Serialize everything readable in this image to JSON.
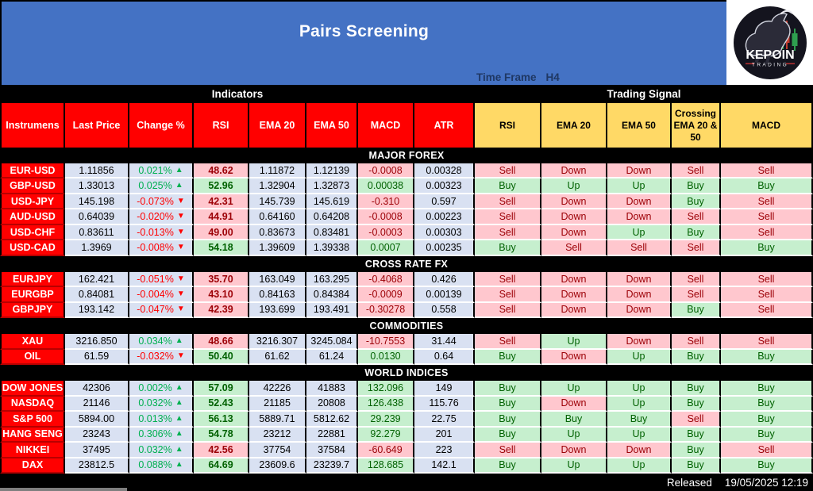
{
  "header": {
    "title": "Pairs Screening",
    "timeframe_label": "Time Frame",
    "timeframe_value": "H4",
    "logo_brand": "KEPOIN",
    "logo_sub": "TRADING"
  },
  "groups": {
    "indicators": "Indicators",
    "trading_signal": "Trading Signal"
  },
  "columns": {
    "indicators": [
      "Instrumens",
      "Last Price",
      "Change %",
      "RSI",
      "EMA 20",
      "EMA 50",
      "MACD",
      "ATR"
    ],
    "signals": [
      "RSI",
      "EMA 20",
      "EMA 50",
      "Crossing EMA  20 & 50",
      "MACD"
    ]
  },
  "icons": {
    "arrow_up": "▲",
    "arrow_down": "▼"
  },
  "sections": [
    {
      "title": "MAJOR FOREX",
      "rows": [
        {
          "instrument": "EUR-USD",
          "last_price": "1.11856",
          "change": "0.021%",
          "change_dir": "up",
          "rsi": "48.62",
          "rsi_state": "bad",
          "ema20": "1.11872",
          "ema50": "1.12139",
          "macd": "-0.0008",
          "macd_state": "bad",
          "atr": "0.00328",
          "signals": [
            {
              "label": "Sell",
              "state": "bad"
            },
            {
              "label": "Down",
              "state": "bad"
            },
            {
              "label": "Down",
              "state": "bad"
            },
            {
              "label": "Sell",
              "state": "bad"
            },
            {
              "label": "Sell",
              "state": "bad"
            }
          ]
        },
        {
          "instrument": "GBP-USD",
          "last_price": "1.33013",
          "change": "0.025%",
          "change_dir": "up",
          "rsi": "52.96",
          "rsi_state": "good",
          "ema20": "1.32904",
          "ema50": "1.32873",
          "macd": "0.00038",
          "macd_state": "good",
          "atr": "0.00323",
          "signals": [
            {
              "label": "Buy",
              "state": "good"
            },
            {
              "label": "Up",
              "state": "good"
            },
            {
              "label": "Up",
              "state": "good"
            },
            {
              "label": "Buy",
              "state": "good"
            },
            {
              "label": "Buy",
              "state": "good"
            }
          ]
        },
        {
          "instrument": "USD-JPY",
          "last_price": "145.198",
          "change": "-0.073%",
          "change_dir": "down",
          "rsi": "42.31",
          "rsi_state": "bad",
          "ema20": "145.739",
          "ema50": "145.619",
          "macd": "-0.310",
          "macd_state": "bad",
          "atr": "0.597",
          "signals": [
            {
              "label": "Sell",
              "state": "bad"
            },
            {
              "label": "Down",
              "state": "bad"
            },
            {
              "label": "Down",
              "state": "bad"
            },
            {
              "label": "Buy",
              "state": "good"
            },
            {
              "label": "Sell",
              "state": "bad"
            }
          ]
        },
        {
          "instrument": "AUD-USD",
          "last_price": "0.64039",
          "change": "-0.020%",
          "change_dir": "down",
          "rsi": "44.91",
          "rsi_state": "bad",
          "ema20": "0.64160",
          "ema50": "0.64208",
          "macd": "-0.0008",
          "macd_state": "bad",
          "atr": "0.00223",
          "signals": [
            {
              "label": "Sell",
              "state": "bad"
            },
            {
              "label": "Down",
              "state": "bad"
            },
            {
              "label": "Down",
              "state": "bad"
            },
            {
              "label": "Sell",
              "state": "bad"
            },
            {
              "label": "Sell",
              "state": "bad"
            }
          ]
        },
        {
          "instrument": "USD-CHF",
          "last_price": "0.83611",
          "change": "-0.013%",
          "change_dir": "down",
          "rsi": "49.00",
          "rsi_state": "bad",
          "ema20": "0.83673",
          "ema50": "0.83481",
          "macd": "-0.0003",
          "macd_state": "bad",
          "atr": "0.00303",
          "signals": [
            {
              "label": "Sell",
              "state": "bad"
            },
            {
              "label": "Down",
              "state": "bad"
            },
            {
              "label": "Up",
              "state": "good"
            },
            {
              "label": "Buy",
              "state": "good"
            },
            {
              "label": "Sell",
              "state": "bad"
            }
          ]
        },
        {
          "instrument": "USD-CAD",
          "last_price": "1.3969",
          "change": "-0.008%",
          "change_dir": "down",
          "rsi": "54.18",
          "rsi_state": "good",
          "ema20": "1.39609",
          "ema50": "1.39338",
          "macd": "0.0007",
          "macd_state": "good",
          "atr": "0.00235",
          "signals": [
            {
              "label": "Buy",
              "state": "good"
            },
            {
              "label": "Sell",
              "state": "bad"
            },
            {
              "label": "Sell",
              "state": "bad"
            },
            {
              "label": "Sell",
              "state": "bad"
            },
            {
              "label": "Buy",
              "state": "good"
            }
          ]
        }
      ]
    },
    {
      "title": "CROSS RATE FX",
      "rows": [
        {
          "instrument": "EURJPY",
          "last_price": "162.421",
          "change": "-0.051%",
          "change_dir": "down",
          "rsi": "35.70",
          "rsi_state": "bad",
          "ema20": "163.049",
          "ema50": "163.295",
          "macd": "-0.4068",
          "macd_state": "bad",
          "atr": "0.426",
          "signals": [
            {
              "label": "Sell",
              "state": "bad"
            },
            {
              "label": "Down",
              "state": "bad"
            },
            {
              "label": "Down",
              "state": "bad"
            },
            {
              "label": "Sell",
              "state": "bad"
            },
            {
              "label": "Sell",
              "state": "bad"
            }
          ]
        },
        {
          "instrument": "EURGBP",
          "last_price": "0.84081",
          "change": "-0.004%",
          "change_dir": "down",
          "rsi": "43.10",
          "rsi_state": "bad",
          "ema20": "0.84163",
          "ema50": "0.84384",
          "macd": "-0.0009",
          "macd_state": "bad",
          "atr": "0.00139",
          "signals": [
            {
              "label": "Sell",
              "state": "bad"
            },
            {
              "label": "Down",
              "state": "bad"
            },
            {
              "label": "Down",
              "state": "bad"
            },
            {
              "label": "Sell",
              "state": "bad"
            },
            {
              "label": "Sell",
              "state": "bad"
            }
          ]
        },
        {
          "instrument": "GBPJPY",
          "last_price": "193.142",
          "change": "-0.047%",
          "change_dir": "down",
          "rsi": "42.39",
          "rsi_state": "bad",
          "ema20": "193.699",
          "ema50": "193.491",
          "macd": "-0.30278",
          "macd_state": "bad",
          "atr": "0.558",
          "signals": [
            {
              "label": "Sell",
              "state": "bad"
            },
            {
              "label": "Down",
              "state": "bad"
            },
            {
              "label": "Down",
              "state": "bad"
            },
            {
              "label": "Buy",
              "state": "good"
            },
            {
              "label": "Sell",
              "state": "bad"
            }
          ]
        }
      ]
    },
    {
      "title": "COMMODITIES",
      "rows": [
        {
          "instrument": "XAU",
          "last_price": "3216.850",
          "change": "0.034%",
          "change_dir": "up",
          "rsi": "48.66",
          "rsi_state": "bad",
          "ema20": "3216.307",
          "ema50": "3245.084",
          "macd": "-10.7553",
          "macd_state": "bad",
          "atr": "31.44",
          "signals": [
            {
              "label": "Sell",
              "state": "bad"
            },
            {
              "label": "Up",
              "state": "good"
            },
            {
              "label": "Down",
              "state": "bad"
            },
            {
              "label": "Sell",
              "state": "bad"
            },
            {
              "label": "Sell",
              "state": "bad"
            }
          ]
        },
        {
          "instrument": "OIL",
          "last_price": "61.59",
          "change": "-0.032%",
          "change_dir": "down",
          "rsi": "50.40",
          "rsi_state": "good",
          "ema20": "61.62",
          "ema50": "61.24",
          "macd": "0.0130",
          "macd_state": "good",
          "atr": "0.64",
          "signals": [
            {
              "label": "Buy",
              "state": "good"
            },
            {
              "label": "Down",
              "state": "bad"
            },
            {
              "label": "Up",
              "state": "good"
            },
            {
              "label": "Buy",
              "state": "good"
            },
            {
              "label": "Buy",
              "state": "good"
            }
          ]
        }
      ]
    },
    {
      "title": "WORLD INDICES",
      "rows": [
        {
          "instrument": "DOW JONES",
          "last_price": "42306",
          "change": "0.002%",
          "change_dir": "up",
          "rsi": "57.09",
          "rsi_state": "good",
          "ema20": "42226",
          "ema50": "41883",
          "macd": "132.096",
          "macd_state": "good",
          "atr": "149",
          "signals": [
            {
              "label": "Buy",
              "state": "good"
            },
            {
              "label": "Up",
              "state": "good"
            },
            {
              "label": "Up",
              "state": "good"
            },
            {
              "label": "Buy",
              "state": "good"
            },
            {
              "label": "Buy",
              "state": "good"
            }
          ]
        },
        {
          "instrument": "NASDAQ",
          "last_price": "21146",
          "change": "0.032%",
          "change_dir": "up",
          "rsi": "52.43",
          "rsi_state": "good",
          "ema20": "21185",
          "ema50": "20808",
          "macd": "126.438",
          "macd_state": "good",
          "atr": "115.76",
          "signals": [
            {
              "label": "Buy",
              "state": "good"
            },
            {
              "label": "Down",
              "state": "bad"
            },
            {
              "label": "Up",
              "state": "good"
            },
            {
              "label": "Buy",
              "state": "good"
            },
            {
              "label": "Buy",
              "state": "good"
            }
          ]
        },
        {
          "instrument": "S&P 500",
          "last_price": "5894.00",
          "change": "0.013%",
          "change_dir": "up",
          "rsi": "56.13",
          "rsi_state": "good",
          "ema20": "5889.71",
          "ema50": "5812.62",
          "macd": "29.239",
          "macd_state": "good",
          "atr": "22.75",
          "signals": [
            {
              "label": "Buy",
              "state": "good"
            },
            {
              "label": "Buy",
              "state": "good"
            },
            {
              "label": "Buy",
              "state": "good"
            },
            {
              "label": "Sell",
              "state": "bad"
            },
            {
              "label": "Buy",
              "state": "good"
            }
          ]
        },
        {
          "instrument": "HANG SENG",
          "last_price": "23243",
          "change": "0.306%",
          "change_dir": "up",
          "rsi": "54.78",
          "rsi_state": "good",
          "ema20": "23212",
          "ema50": "22881",
          "macd": "92.279",
          "macd_state": "good",
          "atr": "201",
          "signals": [
            {
              "label": "Buy",
              "state": "good"
            },
            {
              "label": "Up",
              "state": "good"
            },
            {
              "label": "Up",
              "state": "good"
            },
            {
              "label": "Buy",
              "state": "good"
            },
            {
              "label": "Buy",
              "state": "good"
            }
          ]
        },
        {
          "instrument": "NIKKEI",
          "last_price": "37495",
          "change": "0.032%",
          "change_dir": "up",
          "rsi": "42.56",
          "rsi_state": "bad",
          "ema20": "37754",
          "ema50": "37584",
          "macd": "-60.649",
          "macd_state": "bad",
          "atr": "223",
          "signals": [
            {
              "label": "Sell",
              "state": "bad"
            },
            {
              "label": "Down",
              "state": "bad"
            },
            {
              "label": "Down",
              "state": "bad"
            },
            {
              "label": "Buy",
              "state": "good"
            },
            {
              "label": "Sell",
              "state": "bad"
            }
          ]
        },
        {
          "instrument": "DAX",
          "last_price": "23812.5",
          "change": "0.088%",
          "change_dir": "up",
          "rsi": "64.69",
          "rsi_state": "good",
          "ema20": "23609.6",
          "ema50": "23239.7",
          "macd": "128.685",
          "macd_state": "good",
          "atr": "142.1",
          "signals": [
            {
              "label": "Buy",
              "state": "good"
            },
            {
              "label": "Up",
              "state": "good"
            },
            {
              "label": "Up",
              "state": "good"
            },
            {
              "label": "Buy",
              "state": "good"
            },
            {
              "label": "Buy",
              "state": "good"
            }
          ]
        }
      ]
    }
  ],
  "footer": {
    "released_label": "Released",
    "released_value": "19/05/2025 12:19"
  },
  "colors": {
    "banner_blue": "#4472C4",
    "timeframe_text": "#1F3864",
    "header_red": "#FF0000",
    "signal_gold": "#FFD966",
    "cell_lavender": "#D9E1F2",
    "good_bg": "#C6EFCE",
    "good_text": "#006100",
    "bad_bg": "#FFC7CE",
    "bad_text": "#9C0006",
    "change_up": "#00B050",
    "change_down": "#FF0000"
  }
}
